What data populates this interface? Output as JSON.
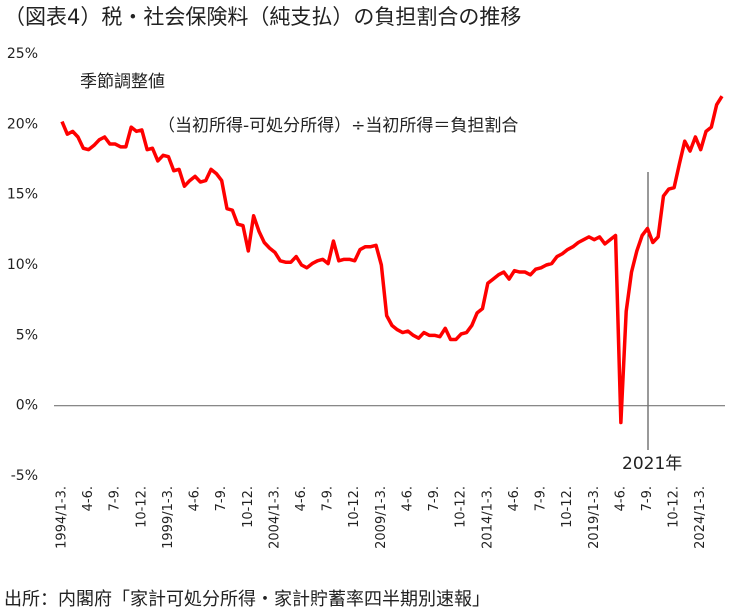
{
  "chart_data": {
    "type": "line",
    "title": "（図表4）税・社会保険料（純支払）の負担割合の推移",
    "annotations": [
      "季節調整値",
      "（当初所得-可処分所得）÷当初所得＝負担割合",
      "2021年"
    ],
    "source": "出所：内閣府「家計可処分所得・家計貯蓄率四半期別速報」",
    "categories": [
      "1994/1-3.",
      null,
      null,
      null,
      null,
      "4-6.",
      null,
      null,
      null,
      null,
      "7-9.",
      null,
      null,
      null,
      null,
      "10-12.",
      null,
      null,
      null,
      null,
      "1999/1-3.",
      null,
      null,
      null,
      null,
      "4-6.",
      null,
      null,
      null,
      null,
      "7-9.",
      null,
      null,
      null,
      null,
      "10-12.",
      null,
      null,
      null,
      null,
      "2004/1-3.",
      null,
      null,
      null,
      null,
      "4-6.",
      null,
      null,
      null,
      null,
      "7-9.",
      null,
      null,
      null,
      null,
      "10-12.",
      null,
      null,
      null,
      null,
      "2009/1-3.",
      null,
      null,
      null,
      null,
      "4-6.",
      null,
      null,
      null,
      null,
      "7-9.",
      null,
      null,
      null,
      null,
      "10-12.",
      null,
      null,
      null,
      null,
      "2014/1-3.",
      null,
      null,
      null,
      null,
      "4-6.",
      null,
      null,
      null,
      null,
      "7-9.",
      null,
      null,
      null,
      null,
      "10-12.",
      null,
      null,
      null,
      null,
      "2019/1-3.",
      null,
      null,
      null,
      null,
      "4-6.",
      null,
      null,
      null,
      null,
      "7-9.",
      null,
      null,
      null,
      null,
      "10-12.",
      null,
      null,
      null,
      null,
      "2024/1-3.",
      null,
      null,
      null,
      null
    ],
    "series": [
      {
        "color": "#ff0000",
        "values": [
          20.2,
          19.3,
          19.5,
          19.1,
          18.3,
          18.2,
          18.5,
          18.9,
          19.1,
          18.6,
          18.6,
          18.4,
          18.4,
          19.8,
          19.5,
          19.6,
          18.2,
          18.3,
          17.4,
          17.8,
          17.7,
          16.7,
          16.8,
          15.6,
          16.0,
          16.3,
          15.9,
          16.0,
          16.8,
          16.5,
          16.0,
          14.0,
          13.9,
          12.9,
          12.8,
          11.0,
          13.5,
          12.4,
          11.6,
          11.2,
          10.9,
          10.3,
          10.2,
          10.2,
          10.6,
          10.0,
          9.8,
          10.1,
          10.3,
          10.4,
          10.1,
          11.7,
          10.3,
          10.4,
          10.4,
          10.3,
          11.1,
          11.3,
          11.3,
          11.4,
          10.0,
          6.4,
          5.7,
          5.4,
          5.2,
          5.3,
          5.0,
          4.8,
          5.2,
          5.0,
          5.0,
          4.9,
          5.5,
          4.7,
          4.7,
          5.1,
          5.2,
          5.7,
          6.6,
          6.9,
          8.7,
          9.0,
          9.3,
          9.5,
          9.0,
          9.6,
          9.5,
          9.5,
          9.3,
          9.7,
          9.8,
          10.0,
          10.1,
          10.6,
          10.8,
          11.1,
          11.3,
          11.6,
          11.8,
          12.0,
          11.8,
          12.0,
          11.5,
          11.8,
          12.1,
          -1.2,
          6.7,
          9.5,
          11.0,
          12.1,
          12.6,
          11.6,
          12.0,
          14.9,
          15.4,
          15.5,
          17.2,
          18.8,
          18.1,
          19.1,
          18.2,
          19.5,
          19.8,
          21.4,
          22.0
        ]
      }
    ],
    "ylim": [
      -5,
      25
    ],
    "yticks": [
      {
        "value": -5,
        "label": "-5%"
      },
      {
        "value": 0,
        "label": "0%"
      },
      {
        "value": 5,
        "label": "5%"
      },
      {
        "value": 10,
        "label": "10%"
      },
      {
        "value": 15,
        "label": "15%"
      },
      {
        "value": 20,
        "label": "20%"
      },
      {
        "value": 25,
        "label": "25%"
      }
    ],
    "grid": false
  }
}
